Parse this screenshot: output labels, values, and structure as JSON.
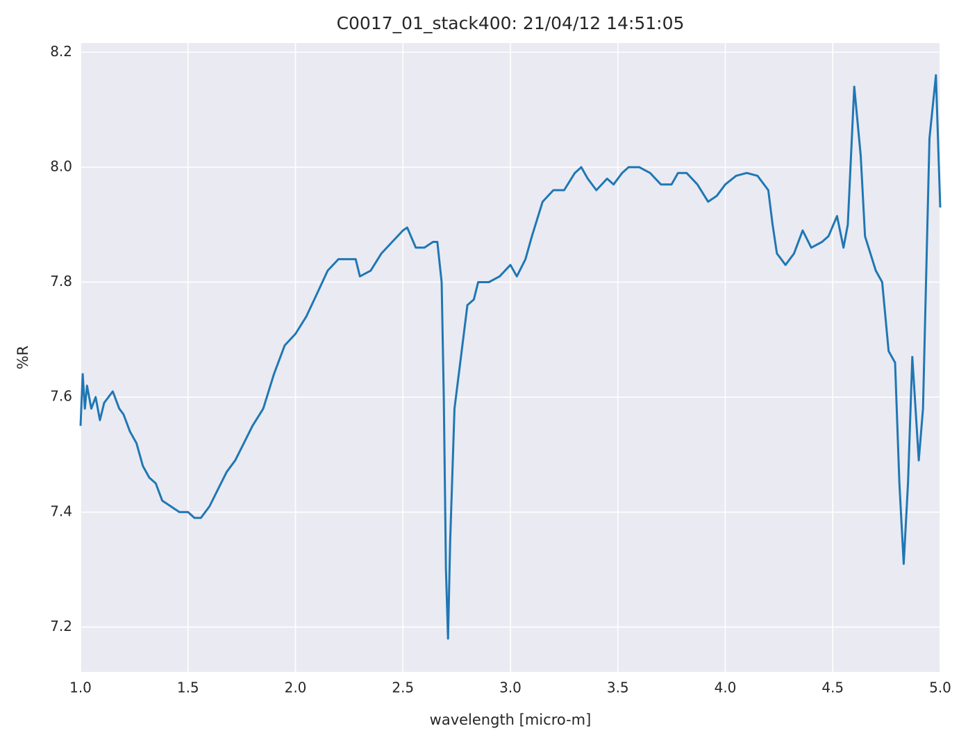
{
  "chart_data": {
    "type": "line",
    "title": "C0017_01_stack400:  21/04/12 14:51:05",
    "x_label": "wavelength [micro-m]",
    "y_label": "%R",
    "color": "#1f77b4",
    "grid": true,
    "xlim": [
      1.0,
      5.0
    ],
    "ylim": [
      7.122,
      8.216
    ],
    "xticks": [
      {
        "value": 1.0,
        "label": "1.0"
      },
      1.5,
      {
        "value": 2.0,
        "label": "2.0"
      },
      2.5,
      {
        "value": 3.0,
        "label": "3.0"
      },
      3.5,
      {
        "value": 4.0,
        "label": "4.0"
      },
      4.5,
      {
        "value": 5.0,
        "label": "5.0"
      }
    ],
    "yticks": [
      7.2,
      7.4,
      7.6,
      7.8,
      {
        "value": 8.0,
        "label": "8.0"
      },
      8.2
    ],
    "x": [
      1.0,
      1.01,
      1.02,
      1.03,
      1.05,
      1.07,
      1.09,
      1.11,
      1.13,
      1.15,
      1.18,
      1.2,
      1.23,
      1.26,
      1.29,
      1.32,
      1.35,
      1.38,
      1.42,
      1.46,
      1.5,
      1.53,
      1.56,
      1.6,
      1.64,
      1.68,
      1.72,
      1.76,
      1.8,
      1.85,
      1.9,
      1.95,
      2.0,
      2.05,
      2.1,
      2.15,
      2.2,
      2.25,
      2.28,
      2.3,
      2.35,
      2.4,
      2.45,
      2.5,
      2.52,
      2.56,
      2.6,
      2.64,
      2.66,
      2.68,
      2.69,
      2.7,
      2.71,
      2.72,
      2.74,
      2.78,
      2.8,
      2.83,
      2.85,
      2.9,
      2.95,
      3.0,
      3.03,
      3.07,
      3.1,
      3.15,
      3.2,
      3.25,
      3.3,
      3.33,
      3.36,
      3.4,
      3.45,
      3.48,
      3.52,
      3.55,
      3.6,
      3.65,
      3.7,
      3.75,
      3.78,
      3.82,
      3.87,
      3.92,
      3.96,
      4.0,
      4.05,
      4.1,
      4.15,
      4.2,
      4.22,
      4.24,
      4.28,
      4.32,
      4.36,
      4.4,
      4.45,
      4.48,
      4.52,
      4.55,
      4.57,
      4.6,
      4.63,
      4.65,
      4.7,
      4.73,
      4.76,
      4.79,
      4.81,
      4.83,
      4.85,
      4.87,
      4.9,
      4.92,
      4.95,
      4.98,
      5.0
    ],
    "values": [
      7.55,
      7.64,
      7.58,
      7.62,
      7.58,
      7.6,
      7.56,
      7.59,
      7.6,
      7.61,
      7.58,
      7.57,
      7.54,
      7.52,
      7.48,
      7.46,
      7.45,
      7.42,
      7.41,
      7.4,
      7.4,
      7.39,
      7.39,
      7.41,
      7.44,
      7.47,
      7.49,
      7.52,
      7.55,
      7.58,
      7.64,
      7.69,
      7.71,
      7.74,
      7.78,
      7.82,
      7.84,
      7.84,
      7.84,
      7.81,
      7.82,
      7.85,
      7.87,
      7.89,
      7.895,
      7.86,
      7.86,
      7.87,
      7.87,
      7.8,
      7.6,
      7.3,
      7.18,
      7.35,
      7.58,
      7.7,
      7.76,
      7.77,
      7.8,
      7.8,
      7.81,
      7.83,
      7.81,
      7.84,
      7.88,
      7.94,
      7.96,
      7.96,
      7.99,
      8.0,
      7.98,
      7.96,
      7.98,
      7.97,
      7.99,
      8.0,
      8.0,
      7.99,
      7.97,
      7.97,
      7.99,
      7.99,
      7.97,
      7.94,
      7.95,
      7.97,
      7.985,
      7.99,
      7.985,
      7.96,
      7.9,
      7.85,
      7.83,
      7.85,
      7.89,
      7.86,
      7.87,
      7.88,
      7.915,
      7.86,
      7.9,
      8.14,
      8.02,
      7.88,
      7.82,
      7.8,
      7.68,
      7.66,
      7.45,
      7.31,
      7.45,
      7.67,
      7.49,
      7.58,
      8.05,
      8.16,
      7.93
    ]
  }
}
